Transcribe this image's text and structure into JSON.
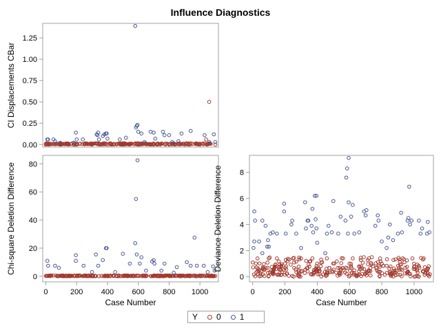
{
  "chart_data": [
    {
      "type": "scatter",
      "title": "Influence Diagnostics",
      "panel": "top-left",
      "xlabel": "",
      "ylabel": "CI Displacements CBar",
      "xlim": [
        -20,
        1120
      ],
      "ylim": [
        -0.03,
        1.42
      ],
      "yticks": [
        "0.00",
        "0.25",
        "0.50",
        "0.75",
        "1.00",
        "1.25"
      ],
      "ytick_values": [
        0,
        0.25,
        0.5,
        0.75,
        1.0,
        1.25
      ],
      "series": [
        {
          "name": "0",
          "color": "#A23A2E",
          "points": [
            [
              0,
              0.0
            ],
            [
              100,
              0.0
            ],
            [
              200,
              0.0
            ],
            [
              300,
              0.0
            ],
            [
              400,
              0.0
            ],
            [
              500,
              0.0
            ],
            [
              600,
              0.0
            ],
            [
              700,
              0.0
            ],
            [
              800,
              0.0
            ],
            [
              900,
              0.0
            ],
            [
              1000,
              0.0
            ],
            [
              1100,
              0.0
            ],
            [
              1060,
              0.5
            ],
            [
              1040,
              0.06
            ]
          ]
        },
        {
          "name": "1",
          "color": "#445694",
          "points": [
            [
              10,
              0.06
            ],
            [
              15,
              0.06
            ],
            [
              50,
              0.06
            ],
            [
              60,
              0.04
            ],
            [
              95,
              0.02
            ],
            [
              180,
              0.02
            ],
            [
              195,
              0.14
            ],
            [
              200,
              0.06
            ],
            [
              240,
              0.06
            ],
            [
              330,
              0.12
            ],
            [
              335,
              0.11
            ],
            [
              340,
              0.14
            ],
            [
              345,
              0.06
            ],
            [
              370,
              0.1
            ],
            [
              380,
              0.12
            ],
            [
              390,
              0.13
            ],
            [
              395,
              0.13
            ],
            [
              400,
              0.07
            ],
            [
              480,
              0.06
            ],
            [
              520,
              0.08
            ],
            [
              580,
              1.39
            ],
            [
              585,
              0.2
            ],
            [
              590,
              0.22
            ],
            [
              595,
              0.23
            ],
            [
              600,
              0.15
            ],
            [
              620,
              0.13
            ],
            [
              680,
              0.15
            ],
            [
              700,
              0.14
            ],
            [
              710,
              0.07
            ],
            [
              760,
              0.15
            ],
            [
              770,
              0.11
            ],
            [
              800,
              0.11
            ],
            [
              880,
              0.13
            ],
            [
              940,
              0.16
            ],
            [
              1030,
              0.11
            ],
            [
              1060,
              0.03
            ],
            [
              1090,
              0.12
            ],
            [
              1100,
              0.03
            ],
            [
              640,
              0.03
            ],
            [
              820,
              0.03
            ],
            [
              860,
              0.04
            ]
          ]
        }
      ]
    },
    {
      "type": "scatter",
      "panel": "bottom-left",
      "xlabel": "Case Number",
      "ylabel": "Chi-square Deletion Difference",
      "xlim": [
        -20,
        1120
      ],
      "ylim": [
        -4,
        86
      ],
      "xticks": [
        "0",
        "200",
        "400",
        "600",
        "800",
        "1000"
      ],
      "xtick_values": [
        0,
        200,
        400,
        600,
        800,
        1000
      ],
      "yticks": [
        "0",
        "20",
        "40",
        "60",
        "80"
      ],
      "ytick_values": [
        0,
        20,
        40,
        60,
        80
      ],
      "series": [
        {
          "name": "0",
          "color": "#A23A2E",
          "points": [
            [
              0,
              0.2
            ],
            [
              100,
              0.2
            ],
            [
              200,
              0.2
            ],
            [
              300,
              0.2
            ],
            [
              400,
              0.2
            ],
            [
              500,
              0.2
            ],
            [
              600,
              0.2
            ],
            [
              700,
              0.2
            ],
            [
              800,
              0.2
            ],
            [
              900,
              0.2
            ],
            [
              1000,
              0.2
            ],
            [
              1100,
              0.2
            ]
          ]
        },
        {
          "name": "1",
          "color": "#445694",
          "points": [
            [
              10,
              11
            ],
            [
              15,
              7.5
            ],
            [
              60,
              7.5
            ],
            [
              85,
              6
            ],
            [
              195,
              15
            ],
            [
              195,
              11
            ],
            [
              245,
              7.5
            ],
            [
              325,
              15.5
            ],
            [
              340,
              7.5
            ],
            [
              370,
              11.5
            ],
            [
              390,
              20
            ],
            [
              395,
              20
            ],
            [
              500,
              16
            ],
            [
              545,
              9
            ],
            [
              580,
              23.5
            ],
            [
              585,
              55
            ],
            [
              590,
              15.5
            ],
            [
              595,
              82.5
            ],
            [
              610,
              9
            ],
            [
              620,
              13.5
            ],
            [
              690,
              10.5
            ],
            [
              700,
              11.5
            ],
            [
              705,
              9
            ],
            [
              770,
              9
            ],
            [
              830,
              2.5
            ],
            [
              850,
              6.5
            ],
            [
              915,
              10
            ],
            [
              940,
              7.5
            ],
            [
              965,
              27.5
            ],
            [
              980,
              7.5
            ],
            [
              1025,
              7.5
            ],
            [
              1085,
              7
            ],
            [
              1095,
              4
            ],
            [
              300,
              3
            ],
            [
              450,
              3
            ],
            [
              650,
              4
            ],
            [
              750,
              4
            ],
            [
              1050,
              3
            ]
          ]
        }
      ]
    },
    {
      "type": "scatter",
      "panel": "bottom-right",
      "xlabel": "Case Number",
      "ylabel": "Deviance Deletion Difference",
      "xlim": [
        -20,
        1120
      ],
      "ylim": [
        -0.4,
        9.3
      ],
      "xticks": [
        "0",
        "200",
        "400",
        "600",
        "800",
        "1000"
      ],
      "xtick_values": [
        0,
        200,
        400,
        600,
        800,
        1000
      ],
      "yticks": [
        "0",
        "2",
        "4",
        "6",
        "8"
      ],
      "ytick_values": [
        0,
        2,
        4,
        6,
        8
      ],
      "series": [
        {
          "name": "0",
          "color": "#A23A2E",
          "points": [
            [
              30,
              1.4
            ],
            [
              100,
              1.4
            ],
            [
              150,
              1.4
            ],
            [
              250,
              1.4
            ],
            [
              300,
              1.4
            ],
            [
              370,
              1.4
            ],
            [
              460,
              1.4
            ],
            [
              560,
              1.4
            ],
            [
              620,
              1.4
            ],
            [
              720,
              1.4
            ],
            [
              790,
              1.4
            ],
            [
              930,
              1.4
            ],
            [
              990,
              1.4
            ],
            [
              1060,
              1.4
            ],
            [
              200,
              1.0
            ],
            [
              400,
              1.0
            ],
            [
              600,
              1.0
            ],
            [
              800,
              1.0
            ],
            [
              1000,
              1.0
            ]
          ]
        },
        {
          "name": "1",
          "color": "#445694",
          "points": [
            [
              5,
              2.2
            ],
            [
              10,
              5.0
            ],
            [
              15,
              4.3
            ],
            [
              10,
              2.7
            ],
            [
              40,
              2.7
            ],
            [
              60,
              4.3
            ],
            [
              60,
              1.8
            ],
            [
              80,
              3.9
            ],
            [
              90,
              2.3
            ],
            [
              95,
              2.8
            ],
            [
              100,
              2.3
            ],
            [
              110,
              3.3
            ],
            [
              125,
              3.4
            ],
            [
              150,
              3.3
            ],
            [
              195,
              5.6
            ],
            [
              195,
              5.0
            ],
            [
              205,
              3.3
            ],
            [
              240,
              4.0
            ],
            [
              245,
              4.3
            ],
            [
              270,
              3.3
            ],
            [
              300,
              2.2
            ],
            [
              325,
              5.7
            ],
            [
              330,
              3.7
            ],
            [
              340,
              4.3
            ],
            [
              345,
              4.3
            ],
            [
              365,
              3.9
            ],
            [
              370,
              5.2
            ],
            [
              375,
              3.4
            ],
            [
              385,
              6.2
            ],
            [
              390,
              4.4
            ],
            [
              395,
              6.2
            ],
            [
              395,
              3.7
            ],
            [
              400,
              2.6
            ],
            [
              450,
              1.8
            ],
            [
              460,
              3.3
            ],
            [
              470,
              3.9
            ],
            [
              490,
              3.4
            ],
            [
              500,
              5.8
            ],
            [
              530,
              3.3
            ],
            [
              545,
              4.6
            ],
            [
              575,
              4.3
            ],
            [
              580,
              7.6
            ],
            [
              585,
              8.3
            ],
            [
              590,
              3.3
            ],
            [
              595,
              9.1
            ],
            [
              595,
              5.7
            ],
            [
              610,
              4.6
            ],
            [
              620,
              5.5
            ],
            [
              630,
              3.3
            ],
            [
              660,
              3.4
            ],
            [
              690,
              5.0
            ],
            [
              700,
              4.7
            ],
            [
              705,
              5.1
            ],
            [
              760,
              3.9
            ],
            [
              775,
              4.7
            ],
            [
              780,
              4.3
            ],
            [
              800,
              2.7
            ],
            [
              830,
              2.2
            ],
            [
              840,
              3.0
            ],
            [
              850,
              4.0
            ],
            [
              870,
              2.8
            ],
            [
              900,
              3.3
            ],
            [
              920,
              4.9
            ],
            [
              925,
              3.4
            ],
            [
              960,
              4.3
            ],
            [
              965,
              4.5
            ],
            [
              970,
              6.9
            ],
            [
              975,
              4.0
            ],
            [
              985,
              4.3
            ],
            [
              1030,
              4.3
            ],
            [
              1040,
              3.3
            ],
            [
              1050,
              3.7
            ],
            [
              1080,
              3.3
            ],
            [
              1085,
              4.2
            ],
            [
              1095,
              3.4
            ]
          ]
        }
      ]
    }
  ],
  "legend": {
    "title": "Y",
    "items": [
      {
        "label": "0",
        "color": "#A23A2E"
      },
      {
        "label": "1",
        "color": "#445694"
      }
    ]
  }
}
